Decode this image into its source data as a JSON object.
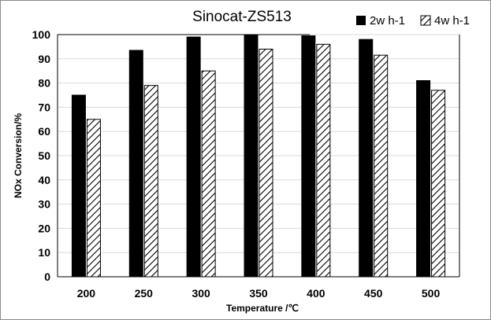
{
  "chart_data": {
    "type": "bar",
    "title": "Sinocat-ZS513",
    "xlabel": "Temperature /℃",
    "ylabel": "NOx Conversion/%",
    "categories": [
      "200",
      "250",
      "300",
      "350",
      "400",
      "450",
      "500"
    ],
    "series": [
      {
        "name": "2w h-1",
        "values": [
          75,
          93.5,
          99,
          100,
          99.5,
          98,
          81
        ],
        "fill": "solid",
        "color": "#000000"
      },
      {
        "name": "4w h-1",
        "values": [
          65,
          79,
          85,
          94,
          96,
          91.5,
          77
        ],
        "fill": "hatch",
        "color": "#000000"
      }
    ],
    "ylim": [
      0,
      100
    ],
    "yticks": [
      0,
      10,
      20,
      30,
      40,
      50,
      60,
      70,
      80,
      90,
      100
    ],
    "grid": true,
    "legend_position": "top-right"
  }
}
